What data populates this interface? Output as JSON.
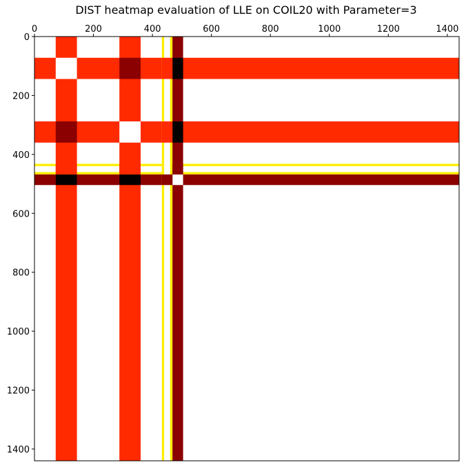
{
  "chart_data": {
    "type": "heatmap",
    "title": "DIST heatmap evaluation of LLE on COIL20 with Parameter=3",
    "xlabel": "",
    "ylabel": "",
    "xlim": [
      0,
      1440
    ],
    "ylim": [
      1440,
      0
    ],
    "x_tick_position": "top",
    "grid": false,
    "colormap": "hot",
    "x_ticks": [
      0,
      200,
      400,
      600,
      800,
      1000,
      1200,
      1400
    ],
    "y_ticks": [
      0,
      200,
      400,
      600,
      800,
      1000,
      1200,
      1400
    ],
    "bands": [
      {
        "range": [
          72,
          144
        ],
        "color": "#ff2a00"
      },
      {
        "range": [
          288,
          360
        ],
        "color": "#ff2a00"
      },
      {
        "range": [
          432,
          440
        ],
        "color": "#ffee00"
      },
      {
        "range": [
          440,
          460
        ],
        "color": "#ffffff"
      },
      {
        "range": [
          460,
          468
        ],
        "color": "#ffee00"
      },
      {
        "range": [
          468,
          504
        ],
        "color": "#8b0000"
      }
    ],
    "cross_cells": [
      {
        "x": [
          72,
          144
        ],
        "y": [
          72,
          144
        ],
        "color": "#ffffff"
      },
      {
        "x": [
          288,
          360
        ],
        "y": [
          288,
          360
        ],
        "color": "#ffffff"
      },
      {
        "x": [
          72,
          144
        ],
        "y": [
          288,
          360
        ],
        "color": "#8b0000"
      },
      {
        "x": [
          288,
          360
        ],
        "y": [
          72,
          144
        ],
        "color": "#8b0000"
      },
      {
        "x": [
          468,
          504
        ],
        "y": [
          72,
          144
        ],
        "color": "#050000"
      },
      {
        "x": [
          468,
          504
        ],
        "y": [
          288,
          360
        ],
        "color": "#050000"
      },
      {
        "x": [
          72,
          144
        ],
        "y": [
          468,
          504
        ],
        "color": "#050000"
      },
      {
        "x": [
          288,
          360
        ],
        "y": [
          468,
          504
        ],
        "color": "#050000"
      },
      {
        "x": [
          468,
          504
        ],
        "y": [
          468,
          504
        ],
        "color": "#ffffff"
      },
      {
        "x": [
          432,
          468
        ],
        "y": [
          72,
          144
        ],
        "color": "#ff2a00"
      },
      {
        "x": [
          432,
          468
        ],
        "y": [
          288,
          360
        ],
        "color": "#ff2a00"
      },
      {
        "x": [
          72,
          144
        ],
        "y": [
          432,
          468
        ],
        "color": "#ff2a00"
      },
      {
        "x": [
          288,
          360
        ],
        "y": [
          432,
          468
        ],
        "color": "#ff2a00"
      },
      {
        "x": [
          432,
          468
        ],
        "y": [
          468,
          504
        ],
        "color": "#8b0000"
      },
      {
        "x": [
          468,
          504
        ],
        "y": [
          432,
          468
        ],
        "color": "#8b0000"
      }
    ]
  }
}
